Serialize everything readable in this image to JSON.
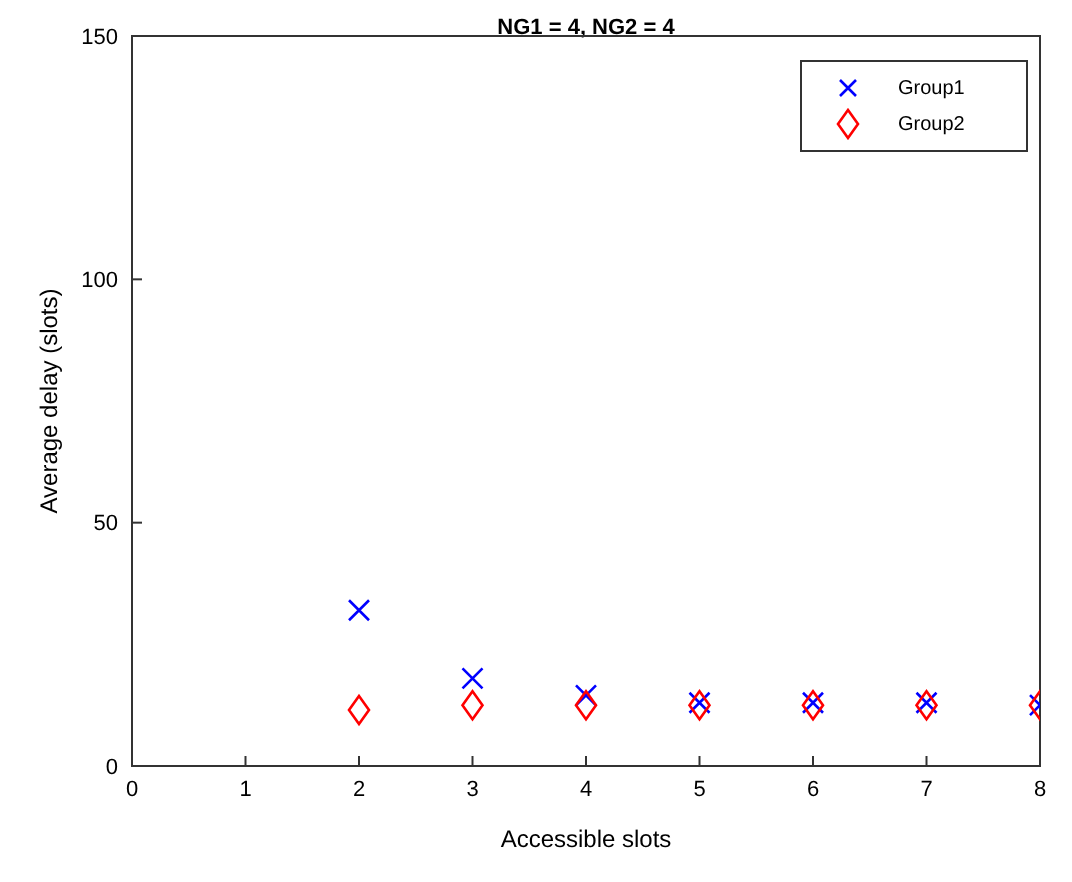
{
  "chart_data": {
    "type": "scatter",
    "title": "NG1 = 4, NG2 = 4",
    "xlabel": "Accessible slots",
    "ylabel": "Average delay (slots)",
    "xlim": [
      0,
      8
    ],
    "xticks": [
      0,
      1,
      2,
      3,
      4,
      5,
      6,
      7,
      8
    ],
    "ylim": [
      0,
      150
    ],
    "yticks": [
      0,
      50,
      100,
      150
    ],
    "grid": false,
    "legend": "top right",
    "series": [
      {
        "name": "Group1",
        "color": "#0000ff",
        "marker": "cross",
        "x": [
          2,
          3,
          4,
          5,
          6,
          7,
          8
        ],
        "values": [
          32,
          18,
          14.5,
          13,
          13,
          13,
          12.5
        ]
      },
      {
        "name": "Group2",
        "color": "#ff0000",
        "marker": "diamond",
        "x": [
          2,
          3,
          4,
          5,
          6,
          7,
          8
        ],
        "values": [
          11.5,
          12.5,
          12.5,
          12.5,
          12.5,
          12.5,
          12.5
        ]
      }
    ]
  }
}
